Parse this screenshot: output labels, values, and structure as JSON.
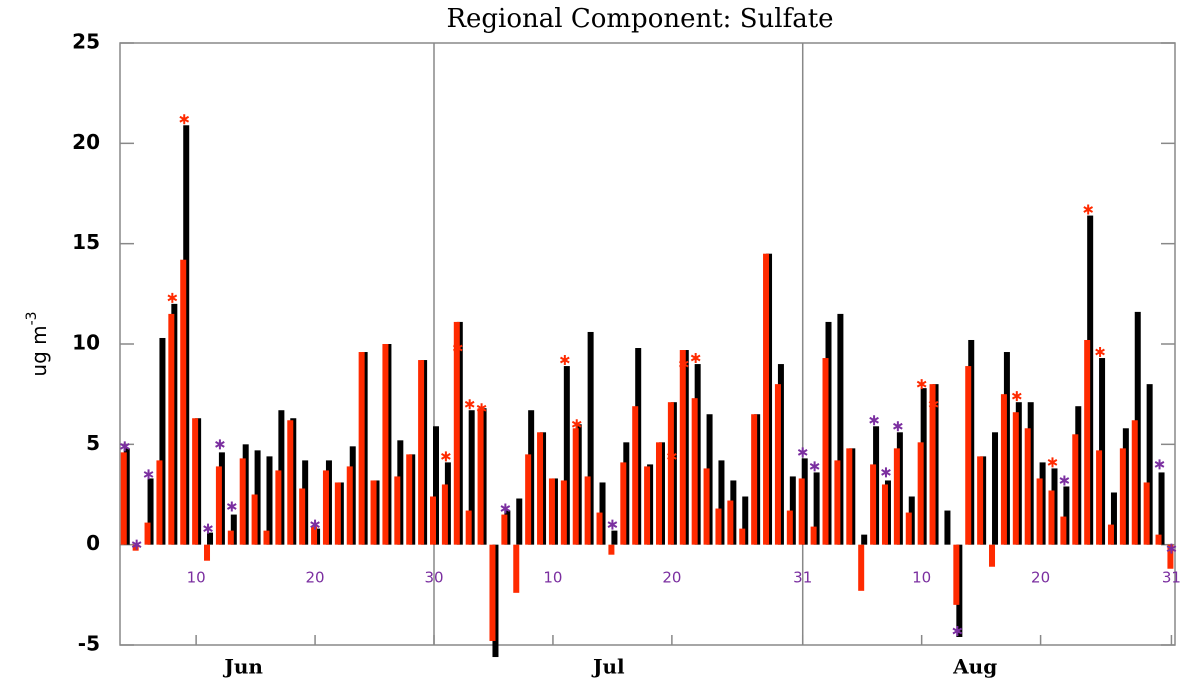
{
  "chart_data": {
    "type": "bar",
    "title": "Regional Component: Sulfate",
    "ylabel": "ug m",
    "ylabel_sup": "-3",
    "x": [
      4,
      5,
      6,
      7,
      8,
      9,
      10,
      11,
      12,
      13,
      14,
      15,
      16,
      17,
      18,
      19,
      20,
      21,
      22,
      23,
      24,
      25,
      26,
      27,
      28,
      29,
      30,
      31,
      32,
      33,
      34,
      35,
      36,
      37,
      38,
      39,
      40,
      41,
      42,
      43,
      44,
      45,
      46,
      47,
      48,
      49,
      50,
      51,
      52,
      53,
      54,
      55,
      56,
      57,
      58,
      59,
      60,
      61,
      62,
      63,
      64,
      65,
      66,
      67,
      68,
      69,
      70,
      71,
      72,
      73,
      74,
      75,
      76,
      77,
      78,
      79,
      80,
      81,
      82,
      83,
      84,
      85,
      86,
      87,
      88,
      89,
      90,
      91,
      92
    ],
    "series": [
      {
        "color": "#000000",
        "values": [
          4.8,
          0,
          3.3,
          10.3,
          12.0,
          20.9,
          6.3,
          0.6,
          4.6,
          1.5,
          5.0,
          4.7,
          4.4,
          6.7,
          6.3,
          4.2,
          0.8,
          4.2,
          3.1,
          4.9,
          9.6,
          3.2,
          10.0,
          5.2,
          4.5,
          9.2,
          5.9,
          4.1,
          11.1,
          6.7,
          6.8,
          -5.6,
          1.7,
          2.3,
          6.7,
          5.6,
          3.3,
          8.9,
          6.0,
          10.6,
          3.1,
          0.7,
          5.1,
          9.8,
          4.0,
          5.1,
          7.1,
          9.7,
          9.0,
          6.5,
          4.2,
          3.2,
          2.4,
          6.5,
          14.5,
          9.0,
          3.4,
          4.3,
          3.6,
          11.1,
          11.5,
          4.8,
          0.5,
          5.9,
          3.2,
          5.6,
          2.4,
          7.8,
          8.0,
          1.7,
          -4.6,
          10.2,
          4.4,
          5.6,
          9.6,
          7.1,
          7.1,
          4.1,
          3.8,
          2.9,
          6.9,
          16.4,
          9.3,
          2.6,
          5.8,
          11.6,
          8.0,
          3.6,
          0
        ]
      },
      {
        "color": "#ff2a00",
        "values": [
          4.6,
          -0.3,
          1.1,
          4.2,
          11.5,
          14.2,
          6.3,
          -0.8,
          3.9,
          0.7,
          4.3,
          2.5,
          0.7,
          3.7,
          6.2,
          2.8,
          0.9,
          3.7,
          3.1,
          3.9,
          9.6,
          3.2,
          10.0,
          3.4,
          4.5,
          9.2,
          2.4,
          3.0,
          11.1,
          1.7,
          6.8,
          -4.8,
          1.5,
          -2.4,
          4.5,
          5.6,
          3.3,
          3.2,
          5.8,
          3.4,
          1.6,
          -0.5,
          4.1,
          6.9,
          3.9,
          5.1,
          7.1,
          9.7,
          7.3,
          3.8,
          1.8,
          2.2,
          0.8,
          6.5,
          14.5,
          8.0,
          1.7,
          3.3,
          0.9,
          9.3,
          4.2,
          4.8,
          -2.3,
          4.0,
          3.0,
          4.8,
          1.6,
          5.1,
          8.0,
          0,
          -3.0,
          8.9,
          4.4,
          -1.1,
          7.5,
          6.6,
          5.8,
          3.3,
          2.7,
          1.4,
          5.5,
          10.2,
          4.7,
          1.0,
          4.8,
          6.2,
          3.1,
          0.5,
          -1.2
        ]
      },
      {
        "type": "star",
        "color": "#7b2fa0",
        "x": [
          4,
          5,
          6,
          11,
          12,
          13,
          20,
          36,
          45,
          61,
          62,
          67,
          68,
          69,
          74,
          83,
          91,
          92
        ],
        "values": [
          4.9,
          0,
          3.5,
          0.8,
          5.0,
          1.9,
          1.0,
          1.8,
          1.0,
          4.6,
          3.9,
          6.2,
          3.6,
          5.9,
          -4.3,
          3.2,
          4.0,
          -0.2
        ]
      },
      {
        "type": "star",
        "color": "#ff2a00",
        "x": [
          8,
          9,
          31,
          32,
          33,
          34,
          41,
          42,
          50,
          51,
          52,
          71,
          72,
          79,
          82,
          85,
          86
        ],
        "values": [
          12.3,
          21.2,
          4.4,
          9.8,
          7.0,
          6.8,
          9.2,
          6.0,
          4.4,
          9.0,
          9.3,
          8.0,
          7.0,
          7.4,
          4.1,
          16.7,
          9.6
        ]
      }
    ],
    "xlim": [
      3.6,
      92.3
    ],
    "xticks": [
      10,
      20,
      30,
      {
        "value": 40,
        "label": "10"
      },
      {
        "value": 50,
        "label": "20"
      },
      {
        "value": 61,
        "label": "31"
      },
      {
        "value": 71,
        "label": "10"
      },
      {
        "value": 81,
        "label": "20"
      },
      {
        "value": 92,
        "label": "31"
      }
    ],
    "months": [
      {
        "value": 14,
        "label": "Jun"
      },
      {
        "value": 44.7,
        "label": "Jul"
      },
      {
        "value": 75.5,
        "label": "Aug"
      }
    ],
    "month_lines": [
      30,
      61
    ],
    "ylim": [
      -5,
      25
    ],
    "yticks": [
      -5,
      0,
      5,
      10,
      15,
      20,
      25
    ]
  }
}
